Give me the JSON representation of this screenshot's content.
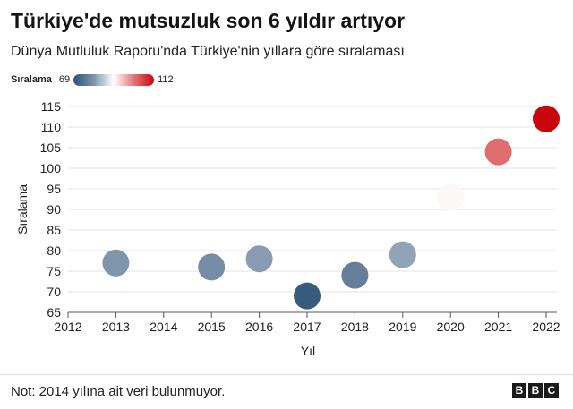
{
  "header": {
    "title": "Türkiye'de mutsuzluk son 6 yıldır artıyor",
    "subtitle": "Dünya Mutluluk Raporu'nda Türkiye'nin yıllara göre sıralaması"
  },
  "legend": {
    "title": "Sıralama",
    "min_label": "69",
    "max_label": "112",
    "colors": {
      "low": "#2f5277",
      "mid": "#ffffff",
      "high": "#c8060c"
    }
  },
  "chart_data": {
    "type": "scatter",
    "xlabel": "Yıl",
    "ylabel": "Sıralama",
    "xlim": [
      2012,
      2022
    ],
    "ylim": [
      65,
      115
    ],
    "x_ticks": [
      2012,
      2013,
      2014,
      2015,
      2016,
      2017,
      2018,
      2019,
      2020,
      2021,
      2022
    ],
    "y_ticks": [
      65,
      70,
      75,
      80,
      85,
      90,
      95,
      100,
      105,
      110,
      115
    ],
    "grid": true,
    "legend_position": "top-left",
    "color_scale": {
      "min": 69,
      "max": 112
    },
    "points": [
      {
        "x": 2013,
        "y": 77
      },
      {
        "x": 2015,
        "y": 76
      },
      {
        "x": 2016,
        "y": 78
      },
      {
        "x": 2017,
        "y": 69
      },
      {
        "x": 2018,
        "y": 74
      },
      {
        "x": 2019,
        "y": 79
      },
      {
        "x": 2020,
        "y": 93
      },
      {
        "x": 2021,
        "y": 104
      },
      {
        "x": 2022,
        "y": 112
      }
    ]
  },
  "footer": {
    "note": "Not: 2014 yılına ait veri bulunmuyor.",
    "logo_letters": [
      "B",
      "B",
      "C"
    ]
  }
}
